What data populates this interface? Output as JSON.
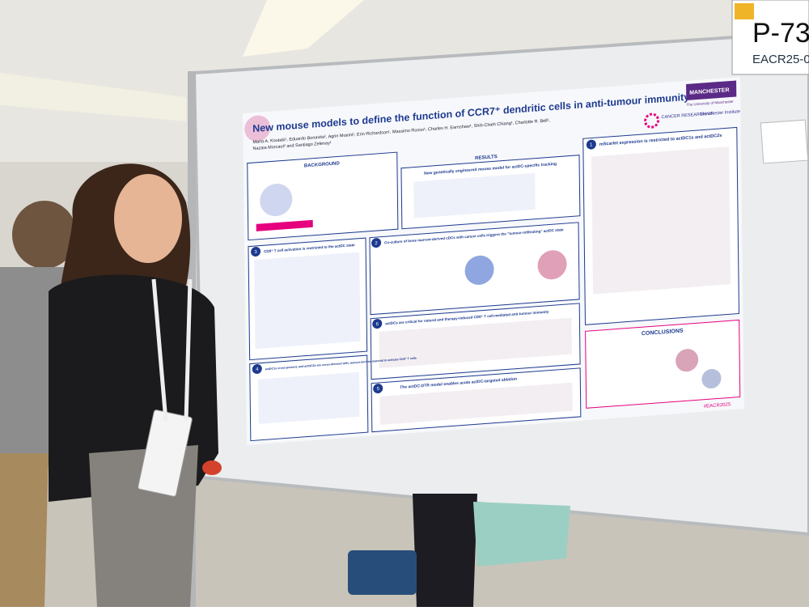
{
  "sign": {
    "code": "P-73",
    "abstract": "EACR25-0"
  },
  "poster": {
    "title": "New mouse models to define the function of CCR7⁺ dendritic cells in anti-tumour immunity",
    "authors": [
      "Maria A. Koutaki¹, Eduardo Bonavita¹, Agrin Moeini¹, Erin Richardson¹, Massimo Russo¹, Charles H. Earnshaw¹, Shih-Chieh Chiang¹, Charlotte R. Bell¹,",
      "Nazaia Morcaut² and Santiago Zelenay¹"
    ],
    "logos": {
      "university": "MANCHESTER",
      "university_sub": "The University of Manchester",
      "cruk": "CANCER RESEARCH UK",
      "institute": "Manchester Institute"
    },
    "sections": [
      {
        "number": null,
        "heading": "BACKGROUND"
      },
      {
        "number": null,
        "heading": "RESULTS",
        "subheading": "New genetically engineered mouse model for actDC-specific tracking"
      },
      {
        "number": "1",
        "heading": "mScarlet expression is restricted to actDC1s and actDC2s"
      },
      {
        "number": "3",
        "heading": "CD8⁺ T cell activation is restricted to the actDC state"
      },
      {
        "number": "2",
        "heading": "Co-culture of bone marrow-derived cDCs with cancer cells triggers the “tumour-infiltrating” actDC state"
      },
      {
        "number": "6",
        "heading": "actDCs are critical for natural and therapy-induced CD8⁺ T cell-mediated anti-tumour immunity"
      },
      {
        "number": "4",
        "heading": "actDC1s cross-present, and actDC2s are cross-dressed with, tumour-derived material to activate CD8⁺ T cells"
      },
      {
        "number": "5",
        "heading": "The actDC-DTR model enables acute actDC-targeted ablation"
      },
      {
        "number": null,
        "heading": "CONCLUSIONS"
      }
    ],
    "hashtag": "#EACR2025"
  }
}
